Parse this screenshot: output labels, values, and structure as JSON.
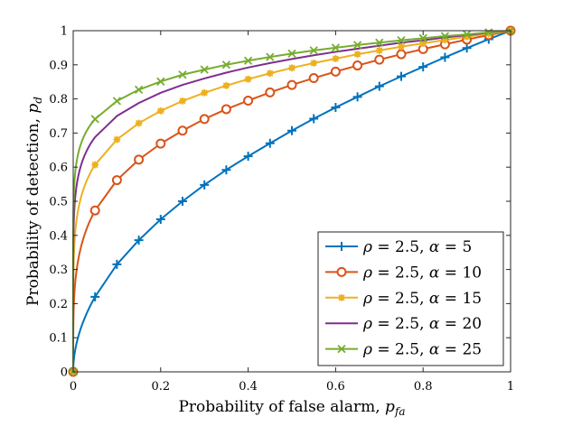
{
  "chart_data": {
    "type": "line",
    "xlabel": "Probability of false alarm, p_fa",
    "ylabel": "Probability of detection, p_d",
    "xlim": [
      0,
      1
    ],
    "ylim": [
      0,
      1
    ],
    "x_ticks": [
      "0",
      "0.2",
      "0.4",
      "0.6",
      "0.8",
      "1"
    ],
    "y_ticks": [
      "0",
      "0.1",
      "0.2",
      "0.3",
      "0.4",
      "0.5",
      "0.6",
      "0.7",
      "0.8",
      "0.9",
      "1"
    ],
    "grid": false,
    "legend_position": "bottom-right",
    "x": [
      0,
      0.05,
      0.1,
      0.15,
      0.2,
      0.25,
      0.3,
      0.35,
      0.4,
      0.45,
      0.5,
      0.55,
      0.6,
      0.65,
      0.7,
      0.75,
      0.8,
      0.85,
      0.9,
      0.95,
      1.0
    ],
    "series": [
      {
        "name": "ρ = 2.5, α = 5",
        "color": "#0072BD",
        "marker": "plus",
        "values": [
          0,
          0.22,
          0.315,
          0.386,
          0.447,
          0.5,
          0.548,
          0.592,
          0.632,
          0.67,
          0.707,
          0.742,
          0.775,
          0.806,
          0.837,
          0.866,
          0.894,
          0.922,
          0.949,
          0.975,
          1.0
        ]
      },
      {
        "name": "ρ = 2.5, α = 10",
        "color": "#D95319",
        "marker": "circle",
        "values": [
          0,
          0.473,
          0.562,
          0.622,
          0.669,
          0.707,
          0.741,
          0.77,
          0.795,
          0.819,
          0.841,
          0.861,
          0.88,
          0.898,
          0.915,
          0.931,
          0.946,
          0.96,
          0.974,
          0.987,
          1.0
        ]
      },
      {
        "name": "ρ = 2.5, α = 15",
        "color": "#EDB120",
        "marker": "star",
        "values": [
          0,
          0.607,
          0.681,
          0.729,
          0.765,
          0.794,
          0.818,
          0.839,
          0.858,
          0.875,
          0.891,
          0.905,
          0.918,
          0.931,
          0.942,
          0.953,
          0.963,
          0.973,
          0.982,
          0.991,
          1.0
        ]
      },
      {
        "name": "ρ = 2.5, α = 20",
        "color": "#7E2F8E",
        "marker": "none",
        "values": [
          0,
          0.688,
          0.75,
          0.788,
          0.818,
          0.841,
          0.86,
          0.877,
          0.892,
          0.905,
          0.917,
          0.928,
          0.938,
          0.947,
          0.956,
          0.965,
          0.972,
          0.98,
          0.987,
          0.994,
          1.0
        ]
      },
      {
        "name": "ρ = 2.5, α = 25",
        "color": "#77AC30",
        "marker": "x",
        "values": [
          0,
          0.741,
          0.794,
          0.827,
          0.851,
          0.871,
          0.886,
          0.9,
          0.912,
          0.923,
          0.933,
          0.942,
          0.95,
          0.958,
          0.965,
          0.972,
          0.978,
          0.984,
          0.989,
          0.995,
          1.0
        ]
      }
    ]
  }
}
